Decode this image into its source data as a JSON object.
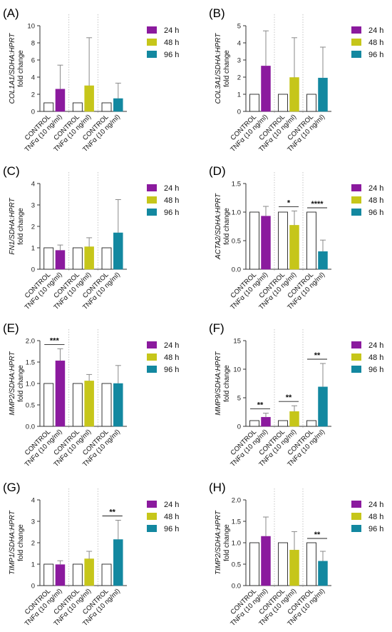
{
  "colors": {
    "h24": "#8B1A9E",
    "h48": "#C6C61A",
    "h96": "#1388A0",
    "control": "#ffffff",
    "axis": "#333333"
  },
  "legend": [
    {
      "label": "24 h",
      "color_key": "h24"
    },
    {
      "label": "48 h",
      "color_key": "h48"
    },
    {
      "label": "96 h",
      "color_key": "h96"
    }
  ],
  "chart_data": [
    {
      "panel": "(A)",
      "type": "bar",
      "ylabel_italic": "COL1A1/SDHA:HPRT",
      "ylabel_plain": "fold change",
      "categories": [
        "CONTROL",
        "TNFα (10 ng/ml)"
      ],
      "ylim": [
        0,
        10
      ],
      "ticks": [
        "0",
        "2",
        "4",
        "6",
        "8",
        "10"
      ],
      "groups": [
        {
          "time": "24 h",
          "control": 1.0,
          "control_err": 0,
          "tnf": 2.6,
          "tnf_err": 2.8,
          "sig": ""
        },
        {
          "time": "48 h",
          "control": 1.0,
          "control_err": 0,
          "tnf": 3.0,
          "tnf_err": 5.6,
          "sig": ""
        },
        {
          "time": "96 h",
          "control": 1.0,
          "control_err": 0,
          "tnf": 1.5,
          "tnf_err": 1.8,
          "sig": ""
        }
      ]
    },
    {
      "panel": "(B)",
      "type": "bar",
      "ylabel_italic": "COL3A1/SDHA:HPRT",
      "ylabel_plain": "fold change",
      "categories": [
        "CONTROL",
        "TNFα (10 ng/ml)"
      ],
      "ylim": [
        0,
        5
      ],
      "ticks": [
        "0",
        "1",
        "2",
        "3",
        "4",
        "5"
      ],
      "groups": [
        {
          "time": "24 h",
          "control": 1.0,
          "control_err": 0,
          "tnf": 2.65,
          "tnf_err": 2.05,
          "sig": ""
        },
        {
          "time": "48 h",
          "control": 1.0,
          "control_err": 0,
          "tnf": 1.98,
          "tnf_err": 2.32,
          "sig": ""
        },
        {
          "time": "96 h",
          "control": 1.0,
          "control_err": 0,
          "tnf": 1.95,
          "tnf_err": 1.8,
          "sig": ""
        }
      ]
    },
    {
      "panel": "(C)",
      "type": "bar",
      "ylabel_italic": "FN1/SDHA:HPRT",
      "ylabel_plain": "fold change",
      "categories": [
        "CONTROL",
        "TNFα (10 ng/ml)"
      ],
      "ylim": [
        0,
        4
      ],
      "ticks": [
        "0",
        "1",
        "2",
        "3",
        "4"
      ],
      "groups": [
        {
          "time": "24 h",
          "control": 1.0,
          "control_err": 0,
          "tnf": 0.88,
          "tnf_err": 0.25,
          "sig": ""
        },
        {
          "time": "48 h",
          "control": 1.0,
          "control_err": 0,
          "tnf": 1.05,
          "tnf_err": 0.42,
          "sig": ""
        },
        {
          "time": "96 h",
          "control": 1.0,
          "control_err": 0,
          "tnf": 1.7,
          "tnf_err": 1.55,
          "sig": ""
        }
      ]
    },
    {
      "panel": "(D)",
      "type": "bar",
      "ylabel_italic": "ACTA2/SDHA:HPRT",
      "ylabel_plain": "fold change",
      "categories": [
        "CONTROL",
        "TNFα (10 ng/ml)"
      ],
      "ylim": [
        0,
        1.5
      ],
      "ticks": [
        "0.0",
        "0.5",
        "1.0",
        "1.5"
      ],
      "groups": [
        {
          "time": "24 h",
          "control": 1.0,
          "control_err": 0,
          "tnf": 0.93,
          "tnf_err": 0.17,
          "sig": ""
        },
        {
          "time": "48 h",
          "control": 1.0,
          "control_err": 0,
          "tnf": 0.77,
          "tnf_err": 0.25,
          "sig": "*"
        },
        {
          "time": "96 h",
          "control": 1.0,
          "control_err": 0,
          "tnf": 0.31,
          "tnf_err": 0.2,
          "sig": "****"
        }
      ]
    },
    {
      "panel": "(E)",
      "type": "bar",
      "ylabel_italic": "MMP2/SDHA:HPRT",
      "ylabel_plain": "fold change",
      "categories": [
        "CONTROL",
        "TNFα (10 ng/ml)"
      ],
      "ylim": [
        0,
        2.0
      ],
      "ticks": [
        "0.0",
        "0.5",
        "1.0",
        "1.5",
        "2.0"
      ],
      "groups": [
        {
          "time": "24 h",
          "control": 1.0,
          "control_err": 0,
          "tnf": 1.53,
          "tnf_err": 0.28,
          "sig": "***"
        },
        {
          "time": "48 h",
          "control": 1.0,
          "control_err": 0,
          "tnf": 1.06,
          "tnf_err": 0.15,
          "sig": ""
        },
        {
          "time": "96 h",
          "control": 1.0,
          "control_err": 0,
          "tnf": 1.0,
          "tnf_err": 0.42,
          "sig": ""
        }
      ]
    },
    {
      "panel": "(F)",
      "type": "bar",
      "ylabel_italic": "MMP9/SDHA:HPRT",
      "ylabel_plain": "fold change",
      "categories": [
        "CONTROL",
        "TNFα (10 ng/ml)"
      ],
      "ylim": [
        0,
        15
      ],
      "ticks": [
        "0",
        "5",
        "10",
        "15"
      ],
      "groups": [
        {
          "time": "24 h",
          "control": 1.0,
          "control_err": 0,
          "tnf": 1.6,
          "tnf_err": 0.7,
          "sig": "**"
        },
        {
          "time": "48 h",
          "control": 1.0,
          "control_err": 0,
          "tnf": 2.6,
          "tnf_err": 1.0,
          "sig": "**"
        },
        {
          "time": "96 h",
          "control": 1.0,
          "control_err": 0,
          "tnf": 6.9,
          "tnf_err": 4.1,
          "sig": "**"
        }
      ]
    },
    {
      "panel": "(G)",
      "type": "bar",
      "ylabel_italic": "TIMP1/SDHA:HPRT",
      "ylabel_plain": "fold change",
      "categories": [
        "CONTROL",
        "TNFα (10 ng/ml)"
      ],
      "ylim": [
        0,
        4
      ],
      "ticks": [
        "0",
        "1",
        "2",
        "3",
        "4"
      ],
      "groups": [
        {
          "time": "24 h",
          "control": 1.0,
          "control_err": 0,
          "tnf": 0.98,
          "tnf_err": 0.18,
          "sig": ""
        },
        {
          "time": "48 h",
          "control": 1.0,
          "control_err": 0,
          "tnf": 1.25,
          "tnf_err": 0.35,
          "sig": ""
        },
        {
          "time": "96 h",
          "control": 1.0,
          "control_err": 0,
          "tnf": 2.15,
          "tnf_err": 0.9,
          "sig": "**"
        }
      ]
    },
    {
      "panel": "(H)",
      "type": "bar",
      "ylabel_italic": "TIMP2/SDHA:HPRT",
      "ylabel_plain": "fold change",
      "categories": [
        "CONTROL",
        "TNFα (10 ng/ml)"
      ],
      "ylim": [
        0,
        2.0
      ],
      "ticks": [
        "0.0",
        "0.5",
        "1.0",
        "1.5",
        "2.0"
      ],
      "groups": [
        {
          "time": "24 h",
          "control": 1.0,
          "control_err": 0,
          "tnf": 1.15,
          "tnf_err": 0.45,
          "sig": ""
        },
        {
          "time": "48 h",
          "control": 1.0,
          "control_err": 0,
          "tnf": 0.83,
          "tnf_err": 0.43,
          "sig": ""
        },
        {
          "time": "96 h",
          "control": 1.0,
          "control_err": 0,
          "tnf": 0.57,
          "tnf_err": 0.23,
          "sig": "**"
        }
      ]
    }
  ]
}
